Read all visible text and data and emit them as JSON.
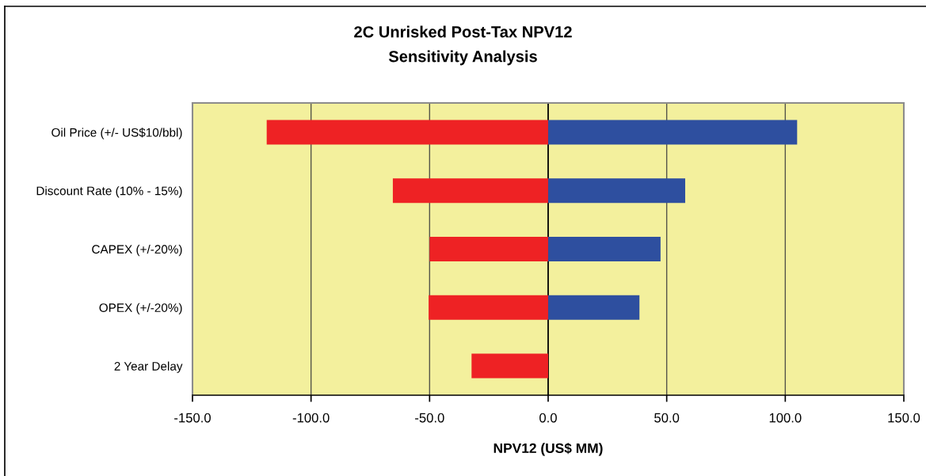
{
  "chart_data": {
    "type": "bar",
    "orientation": "horizontal",
    "stacked": true,
    "title": "2C Unrisked Post-Tax NPV12",
    "subtitle": "Sensitivity Analysis",
    "xlabel": "NPV12 (US$ MM)",
    "categories": [
      "Oil Price (+/- US$10/bbl)",
      "Discount Rate (10% - 15%)",
      "CAPEX (+/-20%)",
      "OPEX (+/-20%)",
      "2 Year Delay"
    ],
    "series": [
      {
        "color": "#ee2224",
        "values": [
          -118.7,
          -65.5,
          -50.0,
          -50.4,
          -32.3
        ]
      },
      {
        "color": "#2e4f9f",
        "values": [
          105.0,
          57.8,
          47.4,
          38.5,
          null
        ]
      }
    ],
    "xlim": [
      -150,
      150
    ],
    "xticks": [
      {
        "value": -150,
        "label": "-150.0"
      },
      {
        "value": -100,
        "label": "-100.0"
      },
      {
        "value": -50,
        "label": "-50.0"
      },
      {
        "value": 0,
        "label": "0.0"
      },
      {
        "value": 50,
        "label": "50.0"
      },
      {
        "value": 100,
        "label": "100.0"
      },
      {
        "value": 150,
        "label": "150.0"
      }
    ],
    "grid": "x",
    "ref_lines": [
      {
        "axis": "x",
        "value": 0,
        "color": "#000000"
      }
    ]
  }
}
